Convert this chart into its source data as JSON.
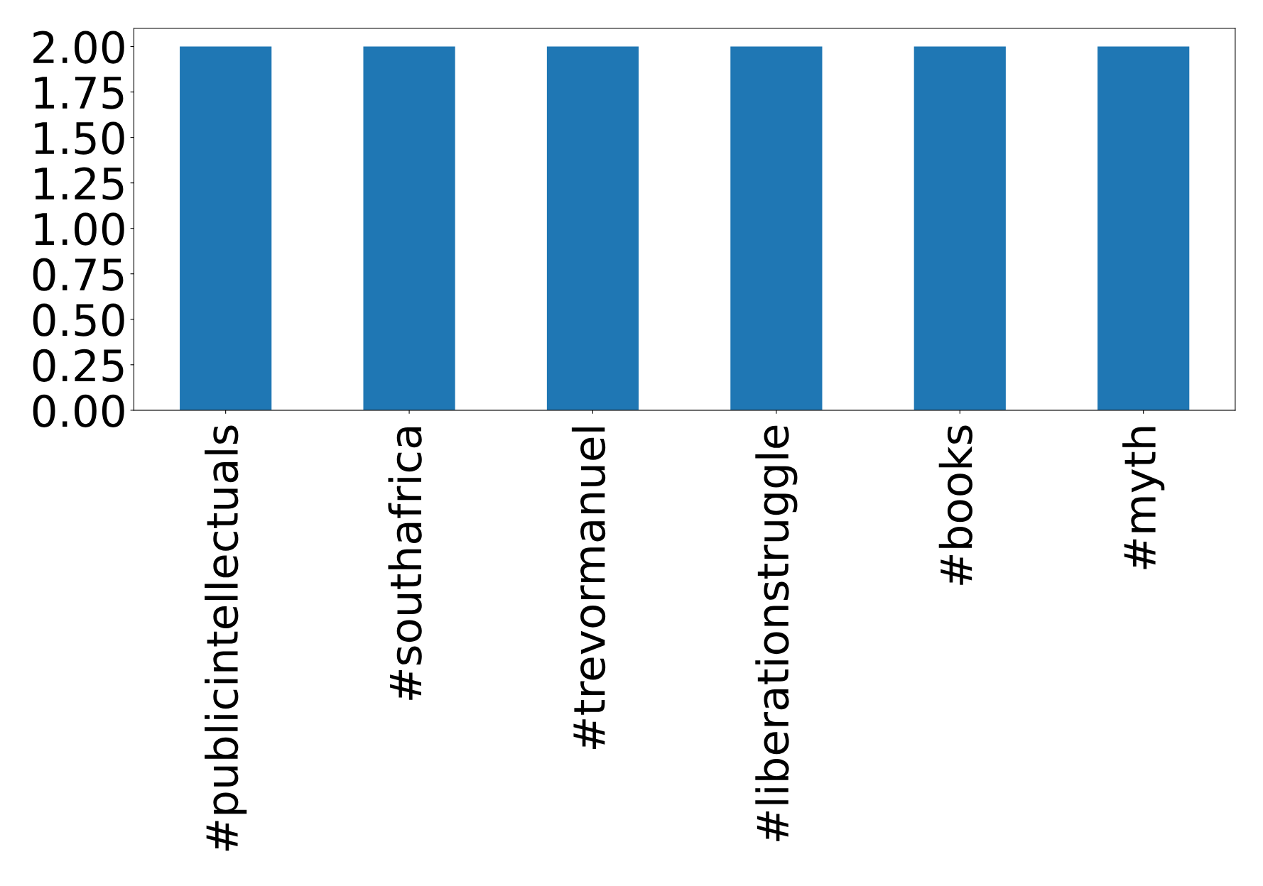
{
  "chart_data": {
    "type": "bar",
    "categories": [
      "#publicintellectuals",
      "#southafrica",
      "#trevormanuel",
      "#liberationstruggle",
      "#books",
      "#myth"
    ],
    "values": [
      2,
      2,
      2,
      2,
      2,
      2
    ],
    "color": "#1f77b4",
    "ylim": [
      0,
      2.1
    ],
    "yticks": [
      {
        "value": 0,
        "label": "0.00"
      },
      {
        "value": 0.25,
        "label": "0.25"
      },
      {
        "value": 0.5,
        "label": "0.50"
      },
      {
        "value": 0.75,
        "label": "0.75"
      },
      {
        "value": 1,
        "label": "1.00"
      },
      {
        "value": 1.25,
        "label": "1.25"
      },
      {
        "value": 1.5,
        "label": "1.50"
      },
      {
        "value": 1.75,
        "label": "1.75"
      },
      {
        "value": 2,
        "label": "2.00"
      }
    ],
    "grid": false
  }
}
